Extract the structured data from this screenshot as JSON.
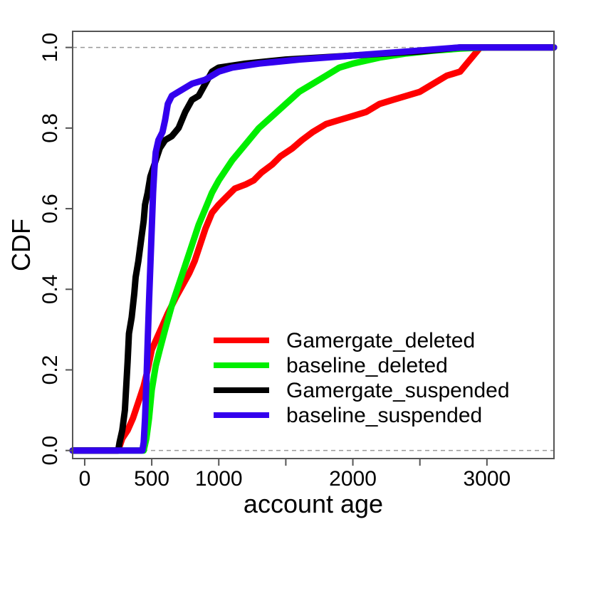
{
  "chart_data": {
    "type": "line",
    "title": "",
    "xlabel": "account age",
    "ylabel": "CDF",
    "xlim": [
      -90,
      3500
    ],
    "ylim": [
      -0.02,
      1.04
    ],
    "x_ticks": [
      0,
      500,
      1000,
      2000,
      3000
    ],
    "x_minor_ticks": [
      1500,
      2500
    ],
    "x_tick_labels": [
      "0",
      "500",
      "1000",
      "2000",
      "3000"
    ],
    "y_ticks": [
      0.0,
      0.2,
      0.4,
      0.6,
      0.8,
      1.0
    ],
    "y_tick_labels": [
      "0.0",
      "0.2",
      "0.4",
      "0.6",
      "0.8",
      "1.0"
    ],
    "reference_lines": [
      0,
      1
    ],
    "legend_position": "bottom-right",
    "series": [
      {
        "name": "Gamergate_deleted",
        "color": "#ff0000",
        "points": [
          [
            -90,
            0
          ],
          [
            250,
            0
          ],
          [
            260,
            0.01
          ],
          [
            280,
            0.03
          ],
          [
            320,
            0.05
          ],
          [
            360,
            0.08
          ],
          [
            400,
            0.12
          ],
          [
            440,
            0.16
          ],
          [
            470,
            0.2
          ],
          [
            500,
            0.25
          ],
          [
            540,
            0.28
          ],
          [
            580,
            0.31
          ],
          [
            620,
            0.34
          ],
          [
            680,
            0.38
          ],
          [
            730,
            0.41
          ],
          [
            780,
            0.44
          ],
          [
            820,
            0.47
          ],
          [
            860,
            0.51
          ],
          [
            900,
            0.55
          ],
          [
            950,
            0.59
          ],
          [
            1000,
            0.61
          ],
          [
            1060,
            0.63
          ],
          [
            1120,
            0.65
          ],
          [
            1200,
            0.66
          ],
          [
            1260,
            0.67
          ],
          [
            1320,
            0.69
          ],
          [
            1400,
            0.71
          ],
          [
            1460,
            0.73
          ],
          [
            1550,
            0.75
          ],
          [
            1620,
            0.77
          ],
          [
            1700,
            0.79
          ],
          [
            1800,
            0.81
          ],
          [
            1900,
            0.82
          ],
          [
            2000,
            0.83
          ],
          [
            2100,
            0.84
          ],
          [
            2200,
            0.86
          ],
          [
            2300,
            0.87
          ],
          [
            2400,
            0.88
          ],
          [
            2500,
            0.89
          ],
          [
            2600,
            0.91
          ],
          [
            2700,
            0.93
          ],
          [
            2800,
            0.94
          ],
          [
            2850,
            0.96
          ],
          [
            2900,
            0.98
          ],
          [
            2950,
            1.0
          ],
          [
            3500,
            1.0
          ]
        ]
      },
      {
        "name": "baseline_deleted",
        "color": "#00ee00",
        "points": [
          [
            -90,
            0
          ],
          [
            440,
            0
          ],
          [
            460,
            0.03
          ],
          [
            480,
            0.08
          ],
          [
            500,
            0.15
          ],
          [
            530,
            0.21
          ],
          [
            560,
            0.25
          ],
          [
            600,
            0.3
          ],
          [
            650,
            0.36
          ],
          [
            700,
            0.41
          ],
          [
            750,
            0.46
          ],
          [
            800,
            0.51
          ],
          [
            850,
            0.56
          ],
          [
            900,
            0.6
          ],
          [
            950,
            0.64
          ],
          [
            1000,
            0.67
          ],
          [
            1100,
            0.72
          ],
          [
            1200,
            0.76
          ],
          [
            1300,
            0.8
          ],
          [
            1400,
            0.83
          ],
          [
            1500,
            0.86
          ],
          [
            1600,
            0.89
          ],
          [
            1700,
            0.91
          ],
          [
            1800,
            0.93
          ],
          [
            1900,
            0.95
          ],
          [
            2000,
            0.96
          ],
          [
            2200,
            0.975
          ],
          [
            2400,
            0.985
          ],
          [
            2600,
            0.992
          ],
          [
            2800,
            0.997
          ],
          [
            3000,
            1.0
          ],
          [
            3500,
            1.0
          ]
        ]
      },
      {
        "name": "Gamergate_suspended",
        "color": "#000000",
        "points": [
          [
            -90,
            0
          ],
          [
            250,
            0
          ],
          [
            260,
            0.02
          ],
          [
            280,
            0.05
          ],
          [
            300,
            0.1
          ],
          [
            310,
            0.16
          ],
          [
            320,
            0.22
          ],
          [
            330,
            0.29
          ],
          [
            350,
            0.33
          ],
          [
            370,
            0.39
          ],
          [
            380,
            0.43
          ],
          [
            400,
            0.47
          ],
          [
            420,
            0.52
          ],
          [
            440,
            0.57
          ],
          [
            450,
            0.61
          ],
          [
            470,
            0.64
          ],
          [
            490,
            0.68
          ],
          [
            520,
            0.71
          ],
          [
            560,
            0.75
          ],
          [
            600,
            0.77
          ],
          [
            650,
            0.78
          ],
          [
            700,
            0.8
          ],
          [
            750,
            0.84
          ],
          [
            800,
            0.87
          ],
          [
            850,
            0.88
          ],
          [
            900,
            0.91
          ],
          [
            950,
            0.94
          ],
          [
            1000,
            0.95
          ],
          [
            1200,
            0.96
          ],
          [
            1500,
            0.97
          ],
          [
            2000,
            0.98
          ],
          [
            2500,
            0.99
          ],
          [
            2800,
            1.0
          ],
          [
            3500,
            1.0
          ]
        ]
      },
      {
        "name": "baseline_suspended",
        "color": "#3300ee",
        "points": [
          [
            -90,
            0
          ],
          [
            430,
            0
          ],
          [
            440,
            0.02
          ],
          [
            450,
            0.08
          ],
          [
            460,
            0.17
          ],
          [
            470,
            0.27
          ],
          [
            480,
            0.37
          ],
          [
            490,
            0.46
          ],
          [
            500,
            0.55
          ],
          [
            510,
            0.64
          ],
          [
            520,
            0.7
          ],
          [
            530,
            0.74
          ],
          [
            550,
            0.77
          ],
          [
            580,
            0.79
          ],
          [
            600,
            0.82
          ],
          [
            620,
            0.86
          ],
          [
            650,
            0.88
          ],
          [
            700,
            0.89
          ],
          [
            800,
            0.91
          ],
          [
            900,
            0.92
          ],
          [
            950,
            0.93
          ],
          [
            1000,
            0.94
          ],
          [
            1100,
            0.95
          ],
          [
            1300,
            0.96
          ],
          [
            1600,
            0.97
          ],
          [
            2000,
            0.98
          ],
          [
            2400,
            0.99
          ],
          [
            2800,
            1.0
          ],
          [
            3500,
            1.0
          ]
        ]
      }
    ]
  }
}
